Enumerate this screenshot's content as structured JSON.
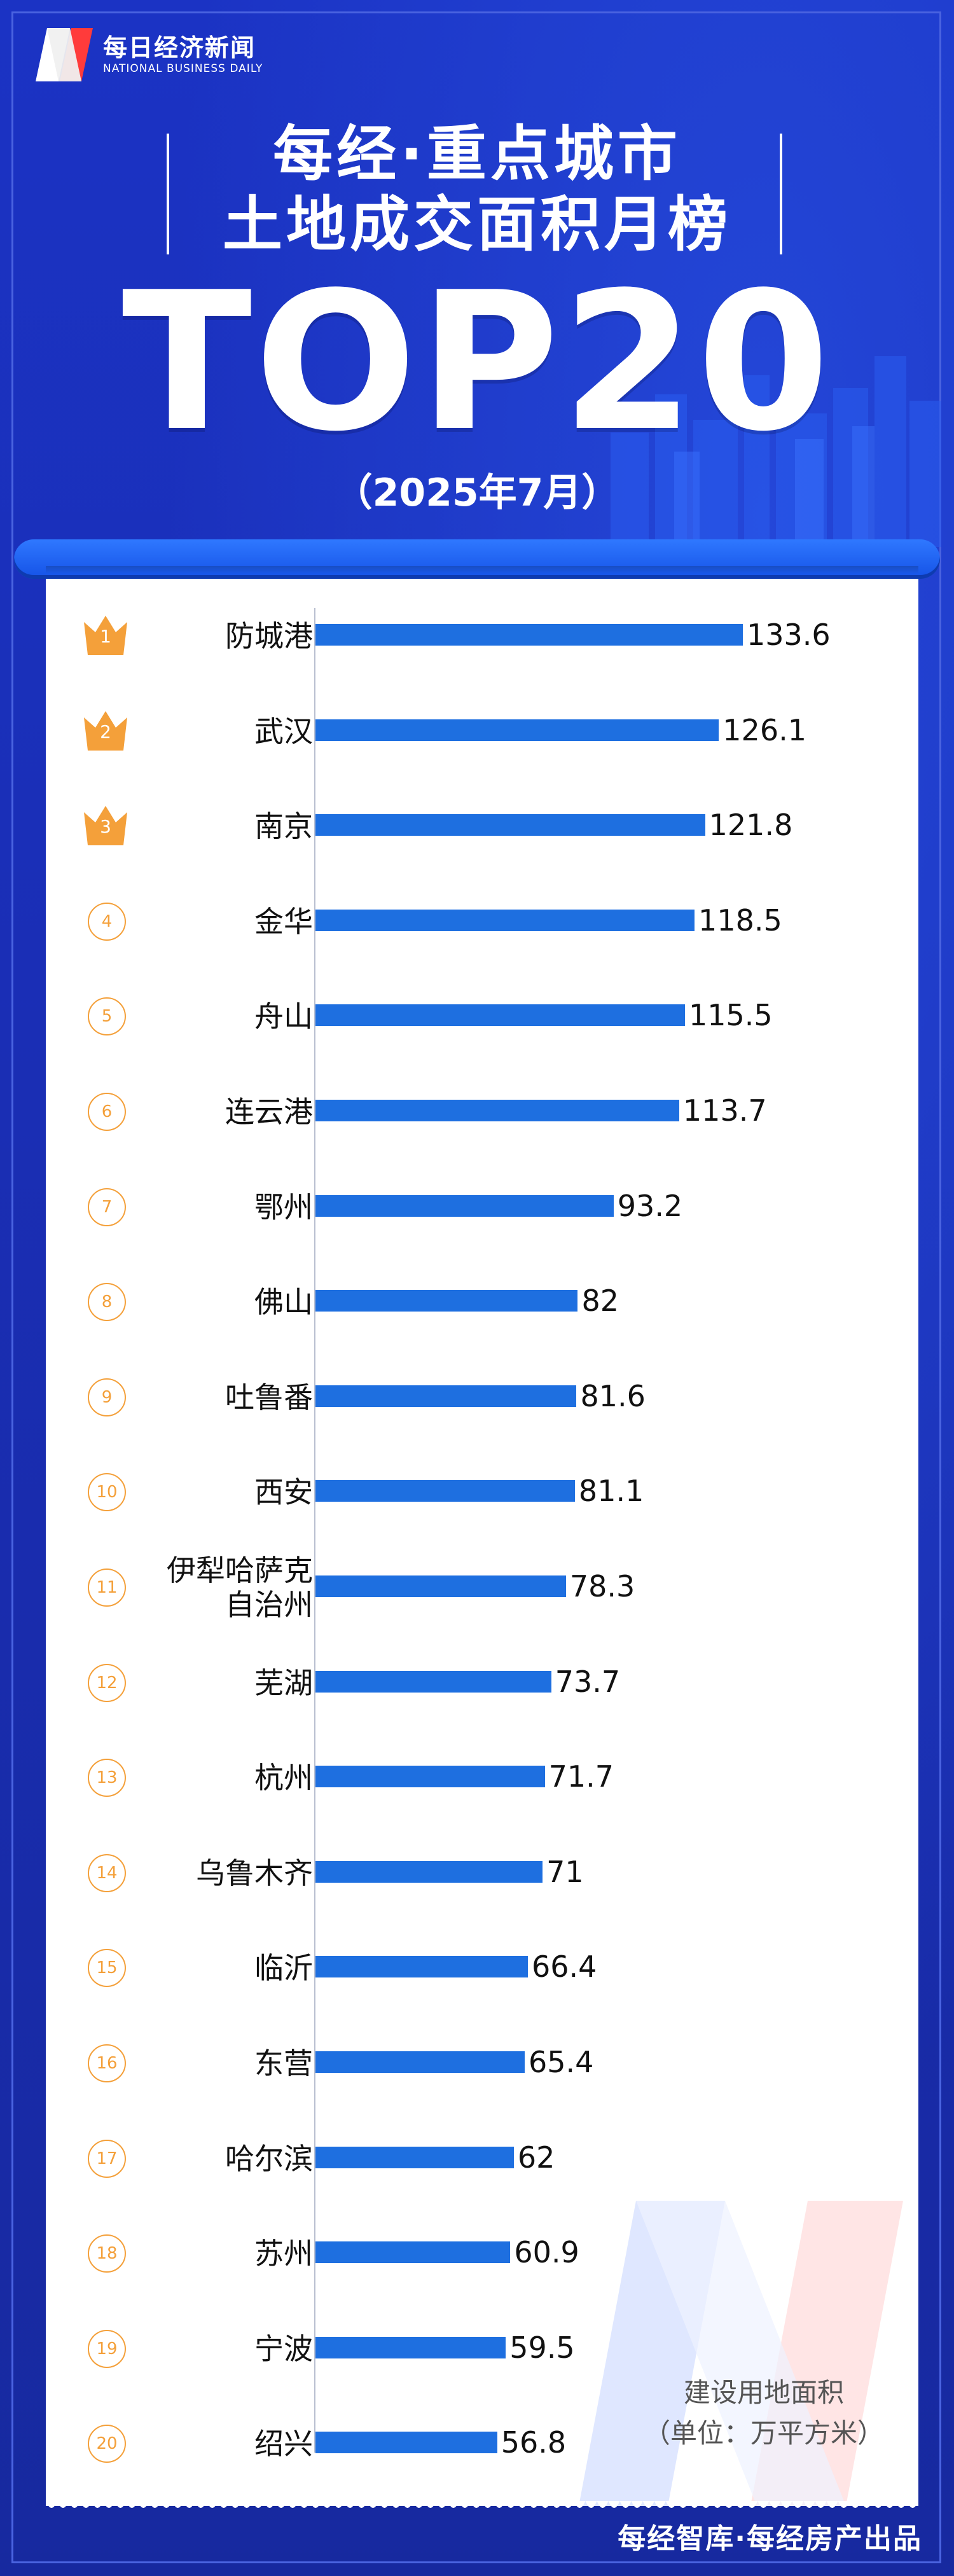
{
  "brand": {
    "name_cn": "每日经济新闻",
    "name_en": "NATIONAL BUSINESS DAILY"
  },
  "header": {
    "line1": "每经·重点城市",
    "line2": "土地成交面积月榜",
    "line3": "TOP20",
    "period": "（2025年7月）"
  },
  "colors": {
    "background": "#1a2fb8",
    "bar": "#1e6fe0",
    "rank_accent": "#f4a03a",
    "paper": "#ffffff"
  },
  "chart_data": {
    "type": "bar",
    "orientation": "horizontal",
    "categories": [
      "防城港",
      "武汉",
      "南京",
      "金华",
      "舟山",
      "连云港",
      "鄂州",
      "佛山",
      "吐鲁番",
      "西安",
      "伊犁哈萨克自治州",
      "芜湖",
      "杭州",
      "乌鲁木齐",
      "临沂",
      "东营",
      "哈尔滨",
      "苏州",
      "宁波",
      "绍兴"
    ],
    "category_labels": [
      "防城港",
      "武汉",
      "南京",
      "金华",
      "舟山",
      "连云港",
      "鄂州",
      "佛山",
      "吐鲁番",
      "西安",
      [
        "伊犁哈萨克",
        "自治州"
      ],
      "芜湖",
      "杭州",
      "乌鲁木齐",
      "临沂",
      "东营",
      "哈尔滨",
      "苏州",
      "宁波",
      "绍兴"
    ],
    "values": [
      133.6,
      126.1,
      121.8,
      118.5,
      115.5,
      113.7,
      93.2,
      82,
      81.6,
      81.1,
      78.3,
      73.7,
      71.7,
      71,
      66.4,
      65.4,
      62,
      60.9,
      59.5,
      56.8
    ],
    "value_labels": [
      "133.6",
      "126.1",
      "121.8",
      "118.5",
      "115.5",
      "113.7",
      "93.2",
      "82",
      "81.6",
      "81.1",
      "78.3",
      "73.7",
      "71.7",
      "71",
      "66.4",
      "65.4",
      "62",
      "60.9",
      "59.5",
      "56.8"
    ],
    "ranks": [
      "1",
      "2",
      "3",
      "4",
      "5",
      "6",
      "7",
      "8",
      "9",
      "10",
      "11",
      "12",
      "13",
      "14",
      "15",
      "16",
      "17",
      "18",
      "19",
      "20"
    ],
    "xlim": [
      0,
      140
    ],
    "grid": false,
    "unit_line1": "建设用地面积",
    "unit_line2": "（单位：万平方米）"
  },
  "footer": {
    "credit": "每经智库·每经房产出品"
  }
}
